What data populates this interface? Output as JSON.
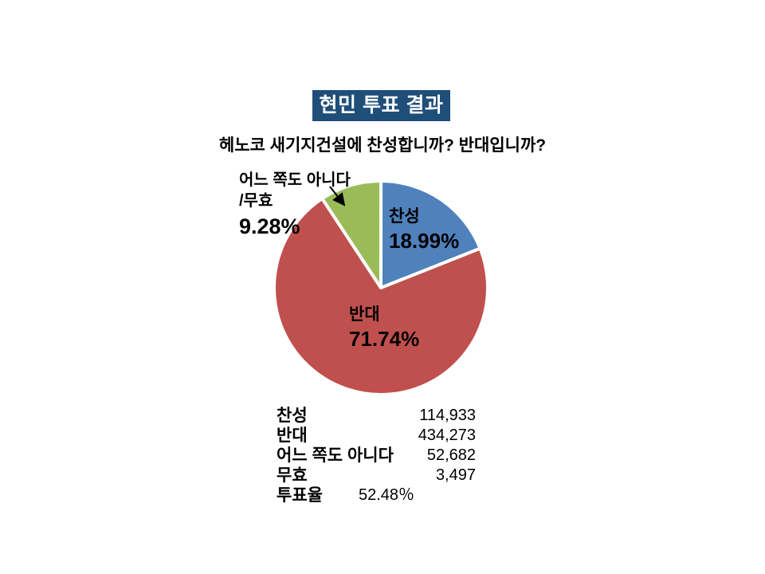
{
  "title_banner": {
    "text": "현민 투표 결과",
    "bg_color": "#1f4e79",
    "text_color": "#ffffff"
  },
  "subtitle": "헤노코 새기지건설에 찬성합니까? 반대입니까?",
  "chart_data": {
    "type": "pie",
    "title": "현민 투표 결과",
    "subtitle": "헤노코 새기지건설에 찬성합니까? 반대입니까?",
    "start_angle_deg": 0,
    "direction": "clockwise",
    "legend_position": "none",
    "labels_on_chart": true,
    "slices": [
      {
        "label": "찬성",
        "percent": 18.99,
        "color": "#4f81bd"
      },
      {
        "label": "반대",
        "percent": 71.74,
        "color": "#c0504d"
      },
      {
        "label": "어느 쪽도 아니다/무효",
        "percent": 9.28,
        "color": "#9bbb59"
      }
    ]
  },
  "pie_labels": {
    "agree_name": "찬성",
    "agree_percent": "18.99%",
    "oppose_name": "반대",
    "oppose_percent": "71.74%",
    "neither_line1": "어느 쪽도 아니다",
    "neither_line2": "/무효",
    "neither_percent": "9.28%"
  },
  "stats_table": {
    "rows": [
      {
        "label": "찬성",
        "value": "114,933"
      },
      {
        "label": "반대",
        "value": "434,273"
      },
      {
        "label": "어느 쪽도 아니다",
        "value": "52,682"
      },
      {
        "label": "무효",
        "value": "3,497"
      },
      {
        "label": "투표율",
        "value": "52.48％"
      }
    ]
  }
}
